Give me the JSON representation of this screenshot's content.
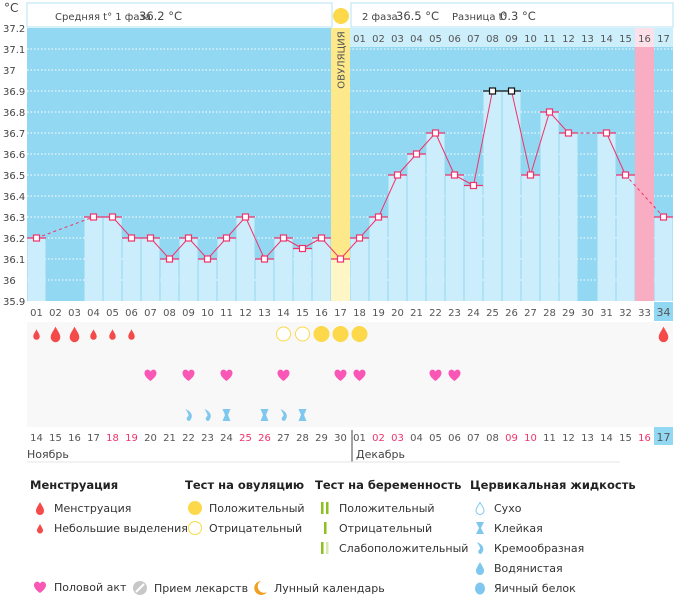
{
  "header": {
    "phase1_label": "Средняя t° 1 фаза",
    "phase1_value": "36.2 °C",
    "phase2_label": "2 фаза",
    "phase2_value": "36.5 °C",
    "diff_label": "Разница t°",
    "diff_value": "0.3 °C",
    "ovulation_label": "ОВУЛЯЦИЯ"
  },
  "chart_data": {
    "type": "bar",
    "ylabel": "°C",
    "ylim": [
      35.9,
      37.2
    ],
    "yticks": [
      "37.2",
      "37.1",
      "37",
      "36.9",
      "36.8",
      "36.7",
      "36.6",
      "36.5",
      "36.4",
      "36.3",
      "36.2",
      "36.1",
      "36",
      "35.9"
    ],
    "grid": true,
    "cycle_days": [
      "01",
      "02",
      "03",
      "04",
      "05",
      "06",
      "07",
      "08",
      "09",
      "10",
      "11",
      "12",
      "13",
      "14",
      "15",
      "16",
      "17",
      "18",
      "19",
      "20",
      "21",
      "22",
      "23",
      "24",
      "25",
      "26",
      "27",
      "28",
      "29",
      "30",
      "31",
      "32",
      "33",
      "34"
    ],
    "temperatures": [
      36.2,
      null,
      null,
      36.3,
      36.3,
      36.2,
      36.2,
      36.1,
      36.2,
      36.1,
      36.2,
      36.3,
      36.1,
      36.2,
      36.15,
      36.2,
      36.1,
      36.2,
      36.3,
      36.5,
      36.6,
      36.7,
      36.5,
      36.45,
      36.9,
      36.9,
      36.5,
      36.8,
      36.7,
      null,
      36.7,
      36.5,
      null,
      36.3
    ],
    "max_marked_days": [
      25,
      26
    ],
    "ovulation_day": 17,
    "phase2_days": [
      "01",
      "02",
      "03",
      "04",
      "05",
      "06",
      "07",
      "08",
      "09",
      "10",
      "11",
      "12",
      "13",
      "14",
      "15",
      "16",
      "17"
    ],
    "dates": [
      "14",
      "15",
      "16",
      "17",
      "18",
      "19",
      "20",
      "21",
      "22",
      "23",
      "24",
      "25",
      "26",
      "27",
      "28",
      "29",
      "30",
      "01",
      "02",
      "03",
      "04",
      "05",
      "06",
      "07",
      "08",
      "09",
      "10",
      "11",
      "12",
      "13",
      "14",
      "15",
      "16",
      "17"
    ],
    "weekend_dates": [
      5,
      6,
      12,
      13,
      19,
      20,
      26,
      27,
      33
    ],
    "months": [
      "Ноябрь",
      "Декабрь"
    ],
    "today_day": 34,
    "expected_period_day": 33
  },
  "markers": {
    "menstruation": [
      {
        "day": 1,
        "size": "small"
      },
      {
        "day": 2,
        "size": "big"
      },
      {
        "day": 3,
        "size": "big"
      },
      {
        "day": 4,
        "size": "small"
      },
      {
        "day": 5,
        "size": "small"
      },
      {
        "day": 6,
        "size": "small"
      },
      {
        "day": 34,
        "size": "big"
      }
    ],
    "ovulation_tests": [
      {
        "day": 14,
        "result": "negative"
      },
      {
        "day": 15,
        "result": "negative"
      },
      {
        "day": 16,
        "result": "positive"
      },
      {
        "day": 17,
        "result": "positive"
      },
      {
        "day": 18,
        "result": "positive"
      }
    ],
    "intercourse": [
      7,
      9,
      11,
      14,
      17,
      18,
      22,
      23
    ],
    "cervical": [
      {
        "day": 9,
        "type": "creamy"
      },
      {
        "day": 10,
        "type": "creamy"
      },
      {
        "day": 11,
        "type": "sticky"
      },
      {
        "day": 13,
        "type": "sticky"
      },
      {
        "day": 14,
        "type": "creamy"
      },
      {
        "day": 15,
        "type": "sticky"
      }
    ]
  },
  "legend": {
    "menstruation": {
      "title": "Менструация",
      "items": [
        "Менструация",
        "Небольшие выделения"
      ]
    },
    "ovulation_test": {
      "title": "Тест на овуляцию",
      "items": [
        "Положительный",
        "Отрицательный"
      ]
    },
    "pregnancy_test": {
      "title": "Тест на беременность",
      "items": [
        "Положительный",
        "Отрицательный",
        "Слабоположительный"
      ]
    },
    "cervical": {
      "title": "Цервикальная жидкость",
      "items": [
        "Сухо",
        "Клейкая",
        "Кремообразная",
        "Водянистая",
        "Яичный белок"
      ]
    },
    "other": [
      "Половой акт",
      "Прием лекарств",
      "Лунный календарь"
    ]
  },
  "colors": {
    "bg": "#93d8f2",
    "bar": "#ccedfb",
    "line": "#f0336a",
    "ovulation": "#fde98a",
    "period": "#f9adc3",
    "drop": "#f44a4a",
    "heart": "#f857b5",
    "sun": "#fcd84a",
    "fluid": "#7ec8ef",
    "weekend": "#f0336a",
    "green": "#8cbf1f"
  }
}
